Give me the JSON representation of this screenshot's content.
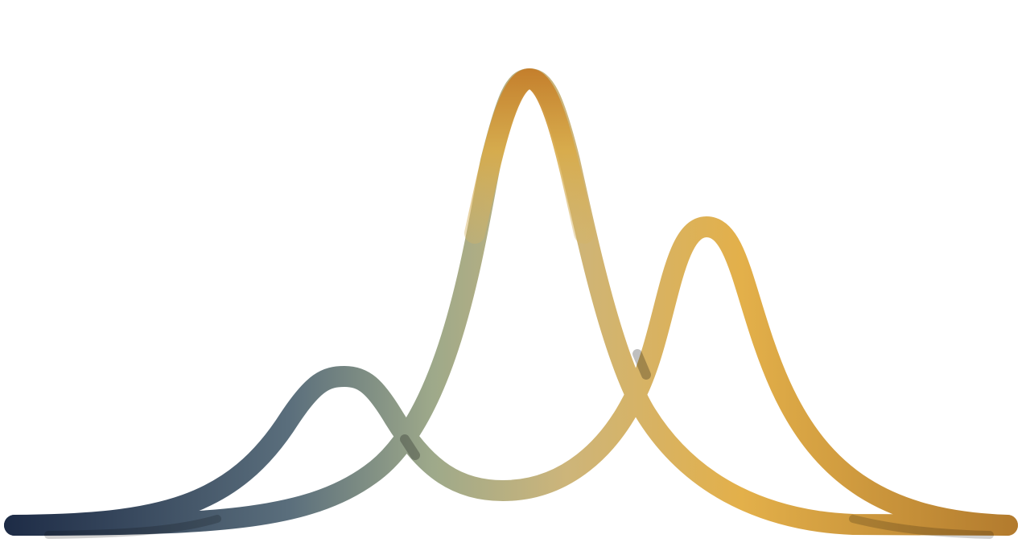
{
  "logo": {
    "icon": "three-peaks-wave-icon",
    "colors": {
      "gradient_start": "#1c2a45",
      "gradient_mid_1": "#5a6e7c",
      "gradient_mid_2": "#9ea98a",
      "gradient_mid_3": "#cdb57a",
      "gradient_gold": "#e3b04a",
      "gradient_end": "#b0782c",
      "peak_top_orange": "#c37c2a",
      "overlap_shadow": "#00000040"
    }
  }
}
